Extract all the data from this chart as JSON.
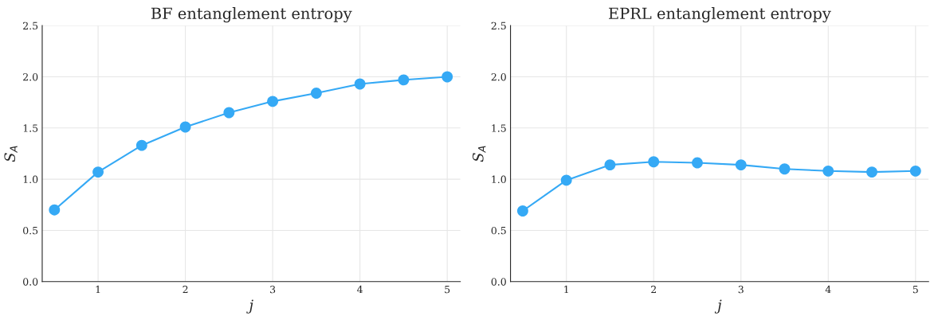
{
  "chart_data": [
    {
      "type": "line",
      "title": "BF entanglement entropy",
      "xlabel": "j",
      "ylabel": "S$_{A}$",
      "x": [
        0.5,
        1,
        1.5,
        2,
        2.5,
        3,
        3.5,
        4,
        4.5,
        5
      ],
      "series": [
        {
          "color": "#35a9f5",
          "values": [
            0.7,
            1.07,
            1.33,
            1.51,
            1.65,
            1.76,
            1.84,
            1.93,
            1.97,
            2.0
          ]
        }
      ],
      "xlim": [
        0.36,
        5.15
      ],
      "xticks": [
        1,
        2,
        3,
        4,
        5
      ],
      "ylim": [
        0,
        2.5
      ],
      "yticks": [
        {
          "value": 0,
          "label": "0.0"
        },
        {
          "value": 0.5,
          "label": "0.5"
        },
        {
          "value": 1,
          "label": "1.0"
        },
        {
          "value": 1.5,
          "label": "1.5"
        },
        {
          "value": 2,
          "label": "2.0"
        },
        {
          "value": 2.5,
          "label": "2.5"
        }
      ],
      "grid": true,
      "marker": "circle",
      "line_style": "solid"
    },
    {
      "type": "line",
      "title": "EPRL entanglement entropy",
      "xlabel": "j",
      "ylabel": "S$_{A}$",
      "x": [
        0.5,
        1,
        1.5,
        2,
        2.5,
        3,
        3.5,
        4,
        4.5,
        5
      ],
      "series": [
        {
          "color": "#35a9f5",
          "values": [
            0.69,
            0.99,
            1.14,
            1.17,
            1.16,
            1.14,
            1.1,
            1.08,
            1.07,
            1.08
          ]
        }
      ],
      "xlim": [
        0.36,
        5.15
      ],
      "xticks": [
        1,
        2,
        3,
        4,
        5
      ],
      "ylim": [
        0,
        2.5
      ],
      "yticks": [
        {
          "value": 0,
          "label": "0.0"
        },
        {
          "value": 0.5,
          "label": "0.5"
        },
        {
          "value": 1,
          "label": "1.0"
        },
        {
          "value": 1.5,
          "label": "1.5"
        },
        {
          "value": 2,
          "label": "2.0"
        },
        {
          "value": 2.5,
          "label": "2.5"
        }
      ],
      "grid": true,
      "marker": "circle",
      "line_style": "solid"
    }
  ]
}
